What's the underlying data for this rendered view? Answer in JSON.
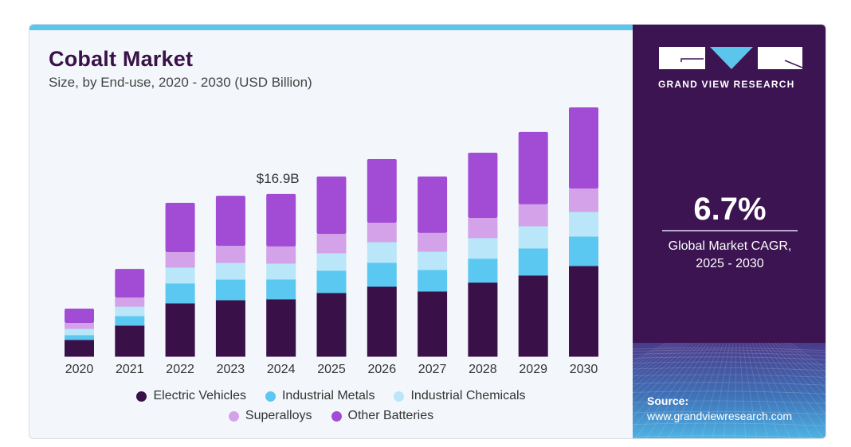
{
  "header": {
    "title": "Cobalt Market",
    "subtitle": "Size, by End-use, 2020 - 2030 (USD Billion)"
  },
  "brand": {
    "name": "GRAND VIEW RESEARCH",
    "logo_icon": "gvr-logo-icon",
    "colors": {
      "panel": "#3b1451",
      "accent": "#5cc5ec"
    }
  },
  "stat": {
    "value": "6.7%",
    "label_line1": "Global Market CAGR,",
    "label_line2": "2025 - 2030"
  },
  "source": {
    "label": "Source:",
    "url": "www.grandviewresearch.com"
  },
  "chart_data": {
    "type": "bar",
    "stacked": true,
    "title": "Cobalt Market",
    "subtitle": "Size, by End-use, 2020 - 2030 (USD Billion)",
    "xlabel": "",
    "ylabel": "USD Billion",
    "ylim": [
      0,
      27
    ],
    "grid": false,
    "legend_position": "bottom",
    "categories": [
      "2020",
      "2021",
      "2022",
      "2023",
      "2024",
      "2025",
      "2026",
      "2027",
      "2028",
      "2029",
      "2030"
    ],
    "series": [
      {
        "name": "Electric Vehicles",
        "color": "#3a1049",
        "values": [
          1.74,
          3.23,
          5.55,
          5.88,
          5.97,
          6.63,
          7.29,
          6.79,
          7.71,
          8.45,
          9.44
        ]
      },
      {
        "name": "Industrial Metals",
        "color": "#5bc8f2",
        "values": [
          0.5,
          0.99,
          2.07,
          2.15,
          2.07,
          2.32,
          2.49,
          2.24,
          2.49,
          2.82,
          3.07
        ]
      },
      {
        "name": "Industrial Chemicals",
        "color": "#b9e6f8",
        "values": [
          0.66,
          0.99,
          1.66,
          1.74,
          1.66,
          1.82,
          2.15,
          1.91,
          2.15,
          2.32,
          2.57
        ]
      },
      {
        "name": "Superalloys",
        "color": "#d3a2e8",
        "values": [
          0.58,
          0.91,
          1.57,
          1.74,
          1.74,
          1.99,
          1.99,
          1.91,
          2.07,
          2.24,
          2.4
        ]
      },
      {
        "name": "Other Batteries",
        "color": "#a24cd6",
        "values": [
          1.49,
          2.98,
          5.14,
          5.22,
          5.47,
          5.97,
          6.63,
          5.88,
          6.79,
          7.54,
          8.45
        ]
      }
    ],
    "annotations": [
      {
        "category": "2024",
        "text": "$16.9B"
      }
    ]
  }
}
